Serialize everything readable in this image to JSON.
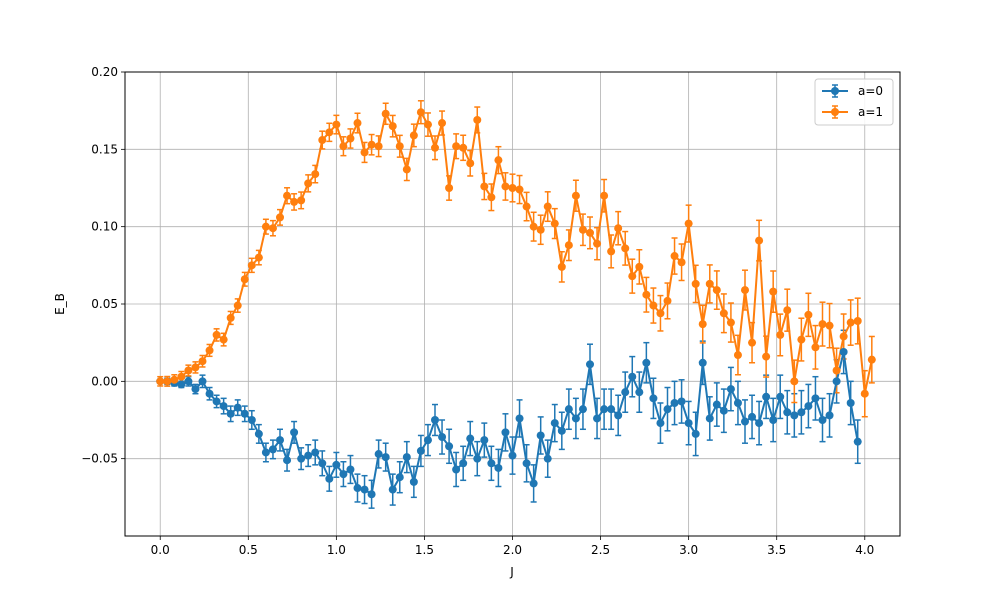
{
  "chart_data": {
    "type": "line",
    "subtype": "errorbar",
    "xlabel": "J",
    "ylabel": "E_B",
    "xlim": [
      -0.2,
      4.2
    ],
    "ylim": [
      -0.1,
      0.2
    ],
    "xticks": [
      0.0,
      0.5,
      1.0,
      1.5,
      2.0,
      2.5,
      3.0,
      3.5,
      4.0
    ],
    "xtick_labels": [
      "0.0",
      "0.5",
      "1.0",
      "1.5",
      "2.0",
      "2.5",
      "3.0",
      "3.5",
      "4.0"
    ],
    "yticks": [
      -0.05,
      0.0,
      0.05,
      0.1,
      0.15,
      0.2
    ],
    "ytick_labels": [
      "−0.05",
      "0.00",
      "0.05",
      "0.10",
      "0.15",
      "0.20"
    ],
    "grid": true,
    "legend_position": "top-right",
    "x_start": 0.0,
    "x_step": 0.04,
    "series": [
      {
        "name": "a=0",
        "color": "#1f77b4",
        "values": [
          0.0,
          0.0,
          -0.001,
          -0.002,
          0.0,
          -0.005,
          0.0,
          -0.008,
          -0.013,
          -0.016,
          -0.021,
          -0.017,
          -0.021,
          -0.025,
          -0.034,
          -0.046,
          -0.044,
          -0.038,
          -0.051,
          -0.033,
          -0.05,
          -0.048,
          -0.046,
          -0.053,
          -0.063,
          -0.054,
          -0.06,
          -0.057,
          -0.069,
          -0.07,
          -0.073,
          -0.047,
          -0.049,
          -0.07,
          -0.062,
          -0.049,
          -0.065,
          -0.045,
          -0.038,
          -0.025,
          -0.036,
          -0.042,
          -0.057,
          -0.053,
          -0.037,
          -0.05,
          -0.038,
          -0.053,
          -0.056,
          -0.033,
          -0.048,
          -0.024,
          -0.053,
          -0.066,
          -0.035,
          -0.05,
          -0.027,
          -0.032,
          -0.018,
          -0.024,
          -0.018,
          0.011,
          -0.024,
          -0.018,
          -0.018,
          -0.022,
          -0.007,
          0.003,
          -0.007,
          0.012,
          -0.011,
          -0.027,
          -0.018,
          -0.014,
          -0.013,
          -0.027,
          -0.034,
          0.012,
          -0.024,
          -0.015,
          -0.019,
          -0.005,
          -0.014,
          -0.026,
          -0.023,
          -0.027,
          -0.01,
          -0.025,
          -0.01,
          -0.02,
          -0.022,
          -0.02,
          -0.016,
          -0.011,
          -0.025,
          -0.022,
          0.0,
          0.019,
          -0.014,
          -0.039
        ],
        "errors": [
          0.001,
          0.002,
          0.002,
          0.002,
          0.003,
          0.003,
          0.004,
          0.004,
          0.004,
          0.005,
          0.005,
          0.005,
          0.005,
          0.006,
          0.006,
          0.006,
          0.006,
          0.007,
          0.007,
          0.007,
          0.007,
          0.007,
          0.008,
          0.008,
          0.008,
          0.008,
          0.008,
          0.009,
          0.009,
          0.009,
          0.009,
          0.009,
          0.009,
          0.01,
          0.01,
          0.01,
          0.01,
          0.01,
          0.01,
          0.01,
          0.011,
          0.011,
          0.011,
          0.011,
          0.011,
          0.011,
          0.011,
          0.011,
          0.012,
          0.012,
          0.012,
          0.012,
          0.012,
          0.012,
          0.012,
          0.012,
          0.012,
          0.012,
          0.013,
          0.013,
          0.013,
          0.013,
          0.013,
          0.013,
          0.013,
          0.013,
          0.013,
          0.013,
          0.013,
          0.013,
          0.013,
          0.013,
          0.014,
          0.014,
          0.014,
          0.014,
          0.014,
          0.014,
          0.014,
          0.014,
          0.014,
          0.014,
          0.014,
          0.014,
          0.014,
          0.014,
          0.014,
          0.014,
          0.014,
          0.014,
          0.014,
          0.014,
          0.014,
          0.014,
          0.014,
          0.014,
          0.014,
          0.014,
          0.014,
          0.014
        ]
      },
      {
        "name": "a=1",
        "color": "#ff7f0e",
        "values": [
          0.0,
          0.0,
          0.001,
          0.003,
          0.007,
          0.009,
          0.013,
          0.02,
          0.03,
          0.027,
          0.041,
          0.049,
          0.066,
          0.075,
          0.08,
          0.1,
          0.099,
          0.106,
          0.12,
          0.116,
          0.117,
          0.128,
          0.134,
          0.156,
          0.161,
          0.166,
          0.152,
          0.157,
          0.167,
          0.148,
          0.153,
          0.152,
          0.173,
          0.165,
          0.152,
          0.137,
          0.159,
          0.174,
          0.166,
          0.151,
          0.167,
          0.125,
          0.152,
          0.151,
          0.141,
          0.169,
          0.126,
          0.119,
          0.143,
          0.126,
          0.125,
          0.124,
          0.113,
          0.1,
          0.098,
          0.113,
          0.102,
          0.074,
          0.088,
          0.12,
          0.098,
          0.096,
          0.089,
          0.12,
          0.084,
          0.099,
          0.086,
          0.068,
          0.074,
          0.056,
          0.049,
          0.044,
          0.052,
          0.081,
          0.077,
          0.102,
          0.063,
          0.037,
          0.063,
          0.059,
          0.044,
          0.038,
          0.017,
          0.059,
          0.025,
          0.091,
          0.016,
          0.058,
          0.03,
          0.046,
          0.0,
          0.027,
          0.043,
          0.022,
          0.037,
          0.036,
          0.007,
          0.029,
          0.038,
          0.039,
          -0.008,
          0.014
        ]
      }
    ]
  },
  "legend": {
    "entries": [
      {
        "label": "a=0",
        "color": "#1f77b4"
      },
      {
        "label": "a=1",
        "color": "#ff7f0e"
      }
    ]
  }
}
